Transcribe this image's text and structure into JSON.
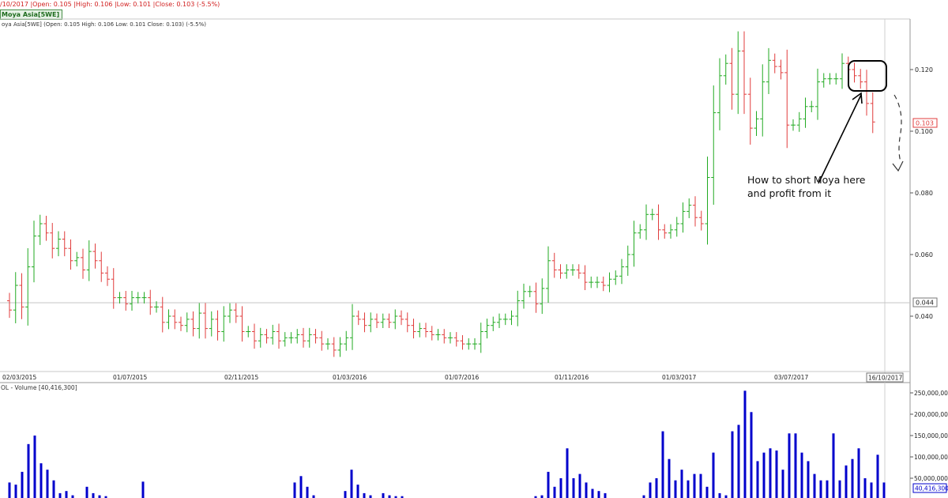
{
  "header": {
    "topline": "/10/2017 |Open: 0.105 |High: 0.106 |Low: 0.101 |Close: 0.103 (-5.5%)",
    "badge": "Moya Asia[5WE]",
    "ohlc_caption": "oya Asia[5WE] (Open: 0.105  High: 0.106  Low: 0.101  Close: 0.103) (-5.5%)"
  },
  "price_pane": {
    "y_ticks": [
      "0.040",
      "0.060",
      "0.080",
      "0.100",
      "0.120"
    ],
    "last_price_label": "0.103",
    "crosshair_label": "0.044",
    "annotation": [
      "How to short Moya here",
      "and profit from it"
    ]
  },
  "date_axis": {
    "labels": [
      "02/03/2015",
      "01/07/2015",
      "02/11/2015",
      "01/03/2016",
      "01/07/2016",
      "01/11/2016",
      "01/03/2017",
      "03/07/2017"
    ],
    "current_date": "16/10/2017"
  },
  "volume_pane": {
    "caption": "OL - Volume [40,416,300]",
    "y_ticks": [
      "50,000,000",
      "100,000,000",
      "150,000,000",
      "200,000,000",
      "250,000,000"
    ],
    "last_volume_label": "40,416,300"
  },
  "colors": {
    "up": "#22aa22",
    "down": "#e03c3c",
    "volume": "#0000cc",
    "grid": "#c0c0c0"
  },
  "chart_data": {
    "type": "bar",
    "title": "Moya Asia[5WE]",
    "ylim": [
      0.026,
      0.136
    ],
    "volume_ylim": [
      0,
      260000000
    ],
    "x_labels": [
      "02/03/2015",
      "01/07/2015",
      "02/11/2015",
      "01/03/2016",
      "01/07/2016",
      "01/11/2016",
      "01/03/2017",
      "03/07/2017",
      "16/10/2017"
    ],
    "closes": [
      0.042,
      0.05,
      0.043,
      0.056,
      0.066,
      0.07,
      0.067,
      0.062,
      0.065,
      0.062,
      0.058,
      0.059,
      0.055,
      0.061,
      0.058,
      0.054,
      0.052,
      0.046,
      0.046,
      0.044,
      0.046,
      0.046,
      0.046,
      0.043,
      0.043,
      0.038,
      0.04,
      0.038,
      0.037,
      0.039,
      0.036,
      0.041,
      0.036,
      0.039,
      0.035,
      0.04,
      0.042,
      0.04,
      0.035,
      0.035,
      0.032,
      0.034,
      0.033,
      0.035,
      0.032,
      0.033,
      0.033,
      0.034,
      0.032,
      0.034,
      0.033,
      0.031,
      0.031,
      0.029,
      0.031,
      0.033,
      0.04,
      0.039,
      0.037,
      0.039,
      0.038,
      0.039,
      0.038,
      0.04,
      0.039,
      0.037,
      0.035,
      0.036,
      0.035,
      0.034,
      0.034,
      0.033,
      0.033,
      0.032,
      0.031,
      0.031,
      0.031,
      0.035,
      0.037,
      0.038,
      0.039,
      0.039,
      0.04,
      0.045,
      0.048,
      0.048,
      0.044,
      0.049,
      0.058,
      0.055,
      0.054,
      0.055,
      0.055,
      0.054,
      0.051,
      0.051,
      0.051,
      0.05,
      0.052,
      0.053,
      0.056,
      0.06,
      0.067,
      0.068,
      0.073,
      0.073,
      0.068,
      0.067,
      0.068,
      0.07,
      0.074,
      0.076,
      0.072,
      0.07,
      0.085,
      0.106,
      0.118,
      0.122,
      0.112,
      0.126,
      0.112,
      0.101,
      0.104,
      0.116,
      0.123,
      0.121,
      0.119,
      0.102,
      0.102,
      0.104,
      0.108,
      0.108,
      0.116,
      0.117,
      0.117,
      0.117,
      0.122,
      0.12,
      0.118,
      0.116,
      0.109,
      0.103
    ],
    "volume_bars": [
      {
        "x": 12,
        "v": 40000000
      },
      {
        "x": 20,
        "v": 35000000
      },
      {
        "x": 28,
        "v": 65000000
      },
      {
        "x": 36,
        "v": 130000000
      },
      {
        "x": 44,
        "v": 150000000
      },
      {
        "x": 52,
        "v": 85000000
      },
      {
        "x": 60,
        "v": 70000000
      },
      {
        "x": 68,
        "v": 45000000
      },
      {
        "x": 76,
        "v": 15000000
      },
      {
        "x": 84,
        "v": 20000000
      },
      {
        "x": 92,
        "v": 10000000
      },
      {
        "x": 110,
        "v": 30000000
      },
      {
        "x": 118,
        "v": 15000000
      },
      {
        "x": 126,
        "v": 10000000
      },
      {
        "x": 134,
        "v": 8000000
      },
      {
        "x": 181,
        "v": 42000000
      },
      {
        "x": 373,
        "v": 40000000
      },
      {
        "x": 381,
        "v": 55000000
      },
      {
        "x": 389,
        "v": 30000000
      },
      {
        "x": 397,
        "v": 10000000
      },
      {
        "x": 437,
        "v": 20000000
      },
      {
        "x": 445,
        "v": 70000000
      },
      {
        "x": 453,
        "v": 35000000
      },
      {
        "x": 461,
        "v": 15000000
      },
      {
        "x": 469,
        "v": 10000000
      },
      {
        "x": 485,
        "v": 15000000
      },
      {
        "x": 493,
        "v": 10000000
      },
      {
        "x": 501,
        "v": 8000000
      },
      {
        "x": 509,
        "v": 8000000
      },
      {
        "x": 678,
        "v": 8000000
      },
      {
        "x": 686,
        "v": 10000000
      },
      {
        "x": 694,
        "v": 65000000
      },
      {
        "x": 702,
        "v": 30000000
      },
      {
        "x": 710,
        "v": 50000000
      },
      {
        "x": 718,
        "v": 120000000
      },
      {
        "x": 726,
        "v": 50000000
      },
      {
        "x": 734,
        "v": 60000000
      },
      {
        "x": 742,
        "v": 40000000
      },
      {
        "x": 750,
        "v": 25000000
      },
      {
        "x": 758,
        "v": 20000000
      },
      {
        "x": 766,
        "v": 15000000
      },
      {
        "x": 815,
        "v": 10000000
      },
      {
        "x": 823,
        "v": 40000000
      },
      {
        "x": 831,
        "v": 50000000
      },
      {
        "x": 839,
        "v": 160000000
      },
      {
        "x": 847,
        "v": 95000000
      },
      {
        "x": 855,
        "v": 45000000
      },
      {
        "x": 863,
        "v": 70000000
      },
      {
        "x": 871,
        "v": 45000000
      },
      {
        "x": 879,
        "v": 60000000
      },
      {
        "x": 887,
        "v": 60000000
      },
      {
        "x": 895,
        "v": 30000000
      },
      {
        "x": 903,
        "v": 110000000
      },
      {
        "x": 911,
        "v": 15000000
      },
      {
        "x": 919,
        "v": 10000000
      },
      {
        "x": 927,
        "v": 160000000
      },
      {
        "x": 935,
        "v": 175000000
      },
      {
        "x": 943,
        "v": 255000000
      },
      {
        "x": 951,
        "v": 205000000
      },
      {
        "x": 959,
        "v": 90000000
      },
      {
        "x": 967,
        "v": 110000000
      },
      {
        "x": 975,
        "v": 120000000
      },
      {
        "x": 983,
        "v": 115000000
      },
      {
        "x": 991,
        "v": 70000000
      },
      {
        "x": 999,
        "v": 155000000
      },
      {
        "x": 1007,
        "v": 155000000
      },
      {
        "x": 1015,
        "v": 110000000
      },
      {
        "x": 1023,
        "v": 90000000
      },
      {
        "x": 1031,
        "v": 60000000
      },
      {
        "x": 1039,
        "v": 45000000
      },
      {
        "x": 1047,
        "v": 45000000
      },
      {
        "x": 1055,
        "v": 155000000
      },
      {
        "x": 1063,
        "v": 45000000
      },
      {
        "x": 1071,
        "v": 80000000
      },
      {
        "x": 1079,
        "v": 95000000
      },
      {
        "x": 1087,
        "v": 120000000
      },
      {
        "x": 1095,
        "v": 50000000
      },
      {
        "x": 1103,
        "v": 40000000
      },
      {
        "x": 1111,
        "v": 105000000
      },
      {
        "x": 1119,
        "v": 40000000
      }
    ]
  }
}
